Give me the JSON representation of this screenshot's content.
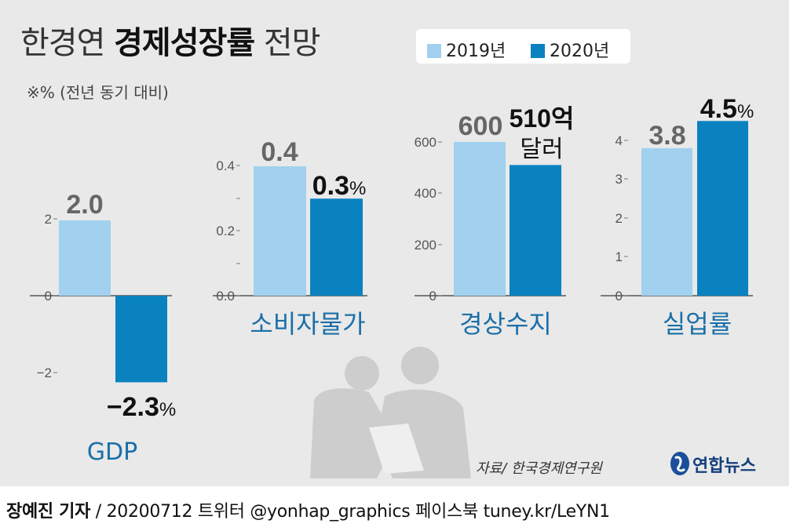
{
  "title": {
    "light1": "한경연",
    "bold": "경제성장률",
    "light2": "전망"
  },
  "unit_note": "※% (전년 동기 대비)",
  "legend": [
    {
      "label": "2019년",
      "color": "#a1d1ee"
    },
    {
      "label": "2020년",
      "color": "#0a82c0"
    }
  ],
  "source": "자료/ 한국경제연구원",
  "logo": {
    "text": "연합뉴스",
    "icon": "yonhap-globe-icon"
  },
  "footer": {
    "reporter": "장예진 기자",
    "rest": "/ 20200712  트위터 @yonhap_graphics  페이스북 tuney.kr/LeYN1"
  },
  "colors": {
    "bar_2019": "#a1d1ee",
    "bar_2020": "#0a82c0",
    "category": "#1a6fa8"
  },
  "chart_data": [
    {
      "type": "bar",
      "category": "GDP",
      "series": [
        {
          "name": "2019년",
          "value": 2.0
        },
        {
          "name": "2020년",
          "value": -2.3
        }
      ],
      "value_labels": [
        "2.0",
        "−2.3%"
      ],
      "yticks": [
        "2",
        "0",
        "−2"
      ],
      "ylim": [
        -2.5,
        2.5
      ]
    },
    {
      "type": "bar",
      "category": "소비자물가",
      "series": [
        {
          "name": "2019년",
          "value": 0.4
        },
        {
          "name": "2020년",
          "value": 0.3
        }
      ],
      "value_labels": [
        "0.4",
        "0.3%"
      ],
      "yticks": [
        "0.0",
        "",
        "0.2",
        "",
        "0.4"
      ],
      "ylim": [
        0,
        0.4
      ]
    },
    {
      "type": "bar",
      "category": "경상수지",
      "series": [
        {
          "name": "2019년",
          "value": 600
        },
        {
          "name": "2020년",
          "value": 510
        }
      ],
      "value_labels": [
        "600",
        "510억 달러"
      ],
      "yticks": [
        "0",
        "200",
        "400",
        "600"
      ],
      "ylim": [
        0,
        600
      ]
    },
    {
      "type": "bar",
      "category": "실업률",
      "series": [
        {
          "name": "2019년",
          "value": 3.8
        },
        {
          "name": "2020년",
          "value": 4.5
        }
      ],
      "value_labels": [
        "3.8",
        "4.5%"
      ],
      "yticks": [
        "0",
        "1",
        "2",
        "3",
        "4"
      ],
      "ylim": [
        0,
        4
      ]
    }
  ]
}
